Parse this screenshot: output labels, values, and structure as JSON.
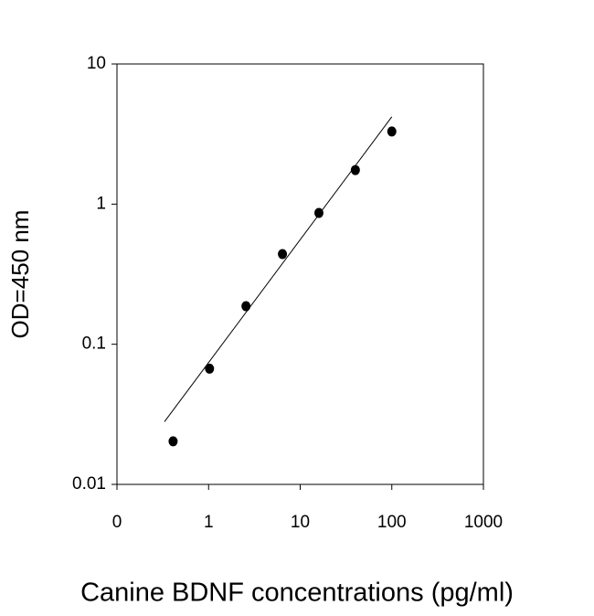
{
  "chart_data": {
    "type": "scatter",
    "x_label": "Canine BDNF concentrations (pg/ml)",
    "y_label": "OD=450 nm",
    "x_log": true,
    "y_log": true,
    "xlim": [
      0.1,
      1000
    ],
    "xticks": [
      {
        "value": 0.1,
        "label": "0"
      },
      1,
      10,
      100,
      1000
    ],
    "ylim": [
      0.01,
      10
    ],
    "yticks": [
      0.01,
      0.1,
      1,
      10
    ],
    "series": [
      {
        "color": "#000000",
        "x": [
          0.41,
          1.024,
          2.56,
          6.4,
          16,
          40,
          100
        ],
        "values": [
          0.0203,
          0.067,
          0.187,
          0.44,
          0.865,
          1.75,
          3.3
        ]
      }
    ],
    "fit_line": {
      "color": "#000000",
      "x": [
        0.33,
        100
      ],
      "values": [
        0.028,
        4.2
      ]
    }
  }
}
